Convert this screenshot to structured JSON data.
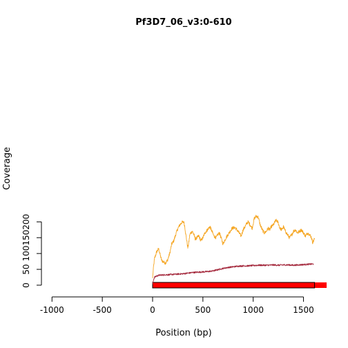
{
  "chart_data": {
    "type": "line",
    "title": "Pf3D7_06_v3:0-610",
    "xlabel": "Position (bp)",
    "ylabel": "Coverage",
    "xlim": [
      -1000,
      1700
    ],
    "ylim": [
      -10,
      230
    ],
    "x_ticks": [
      -1000,
      -500,
      0,
      500,
      1000,
      1500
    ],
    "y_ticks": [
      0,
      50,
      100,
      150,
      200
    ],
    "x_tick_labels": [
      "-1000",
      "-500",
      "0",
      "500",
      "1000",
      "1500"
    ],
    "y_tick_labels": [
      "0",
      "50",
      "100",
      "150",
      "200"
    ],
    "grid": false,
    "legend": "none",
    "series": [
      {
        "color": "#f5a623",
        "x": [
          0,
          10,
          20,
          40,
          60,
          80,
          90,
          110,
          130,
          150,
          170,
          190,
          210,
          230,
          250,
          270,
          290,
          310,
          320,
          330,
          340,
          350,
          360,
          370,
          380,
          395,
          410,
          425,
          440,
          460,
          480,
          500,
          520,
          545,
          570,
          590,
          610,
          630,
          650,
          665,
          680,
          700,
          730,
          760,
          790,
          820,
          850,
          880,
          900,
          920,
          935,
          950,
          970,
          990,
          1010,
          1030,
          1050,
          1070,
          1090,
          1110,
          1130,
          1150,
          1165,
          1180,
          1200,
          1225,
          1245,
          1265,
          1285,
          1300,
          1320,
          1340,
          1360,
          1385,
          1400,
          1420,
          1440,
          1460,
          1480,
          1500,
          1520,
          1540,
          1560,
          1580,
          1590,
          1600,
          1610
        ],
        "y": [
          22,
          60,
          85,
          105,
          115,
          90,
          78,
          73,
          70,
          80,
          100,
          130,
          140,
          160,
          178,
          190,
          198,
          200,
          185,
          160,
          140,
          118,
          135,
          160,
          165,
          170,
          160,
          145,
          150,
          155,
          140,
          150,
          165,
          175,
          185,
          170,
          155,
          150,
          160,
          165,
          150,
          130,
          150,
          165,
          180,
          182,
          170,
          155,
          175,
          185,
          195,
          200,
          190,
          180,
          210,
          218,
          215,
          190,
          175,
          165,
          170,
          180,
          175,
          185,
          190,
          205,
          200,
          180,
          175,
          185,
          170,
          160,
          150,
          160,
          170,
          175,
          165,
          170,
          175,
          165,
          155,
          165,
          160,
          150,
          135,
          140,
          148
        ]
      },
      {
        "color": "#a3263a",
        "x": [
          0,
          10,
          20,
          40,
          60,
          80,
          100,
          130,
          160,
          200,
          250,
          300,
          350,
          400,
          450,
          500,
          550,
          600,
          650,
          700,
          750,
          800,
          850,
          900,
          950,
          1000,
          1050,
          1100,
          1150,
          1200,
          1250,
          1300,
          1350,
          1400,
          1450,
          1500,
          1550,
          1600
        ],
        "y": [
          3,
          18,
          25,
          29,
          31,
          32,
          32,
          33,
          33,
          34,
          35,
          36,
          38,
          40,
          41,
          42,
          43,
          45,
          49,
          53,
          56,
          58,
          60,
          61,
          61,
          62,
          63,
          63,
          63,
          64,
          63,
          64,
          64,
          63,
          64,
          65,
          66,
          67
        ]
      }
    ],
    "feature_bar": {
      "color": "#ff0000",
      "x_start": 0,
      "x_end": 1730,
      "outline_end": 1610
    }
  }
}
